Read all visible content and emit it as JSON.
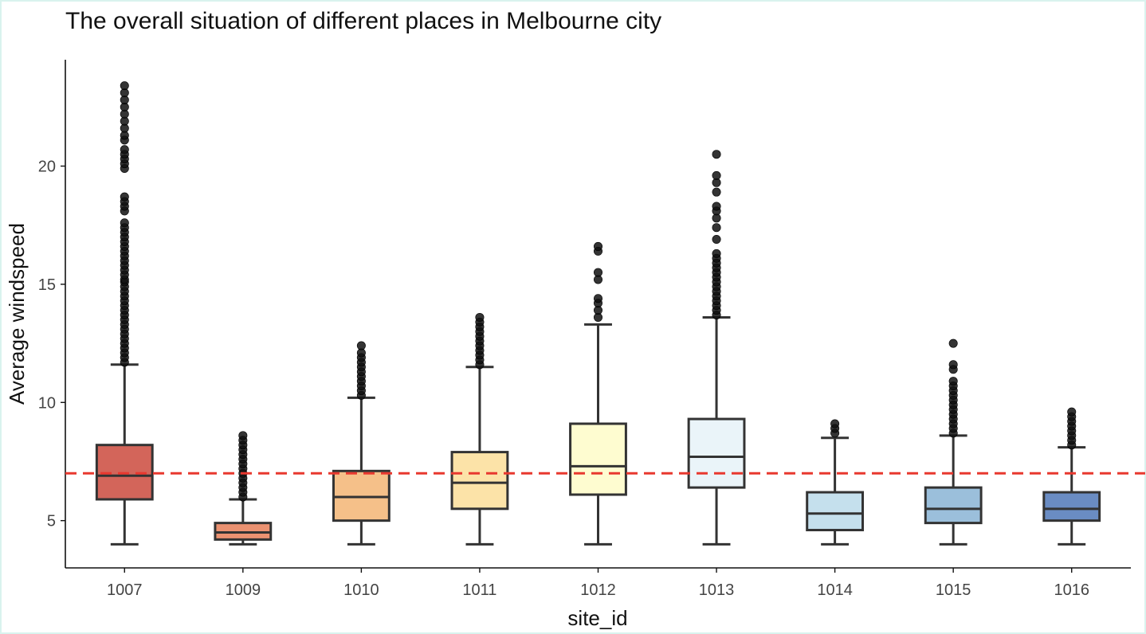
{
  "chart_data": {
    "type": "box",
    "title": "The overall situation of different places in Melbourne city",
    "xlabel": "site_id",
    "ylabel": "Average windspeed",
    "ylim": [
      3,
      24.5
    ],
    "yticks": [
      5,
      10,
      15,
      20
    ],
    "grid": false,
    "reference_line": {
      "y": 7.0,
      "style": "dashed",
      "color": "#e8382f"
    },
    "box_edge_color": "#333333",
    "outlier_color": "#111111",
    "series": [
      {
        "category": "1007",
        "color": "#d3655a",
        "min": 4.0,
        "q1": 5.9,
        "median": 6.9,
        "q3": 8.2,
        "max": 11.6,
        "outliers": [
          11.7,
          11.9,
          12.1,
          12.3,
          12.5,
          12.7,
          12.9,
          13.1,
          13.3,
          13.5,
          13.7,
          13.9,
          14.1,
          14.3,
          14.5,
          14.7,
          14.9,
          15.1,
          15.2,
          15.4,
          15.6,
          15.8,
          16.0,
          16.2,
          16.4,
          16.6,
          16.8,
          17.0,
          17.2,
          17.4,
          17.6,
          18.1,
          18.3,
          18.5,
          18.7,
          19.9,
          20.1,
          20.3,
          20.5,
          20.7,
          21.1,
          21.3,
          21.6,
          21.9,
          22.2,
          22.5,
          22.8,
          23.1,
          23.4
        ]
      },
      {
        "category": "1009",
        "color": "#eb9271",
        "min": 4.0,
        "q1": 4.2,
        "median": 4.5,
        "q3": 4.9,
        "max": 5.9,
        "outliers": [
          6.0,
          6.2,
          6.4,
          6.6,
          6.8,
          7.0,
          7.2,
          7.4,
          7.6,
          7.8,
          8.0,
          8.2,
          8.4,
          8.6
        ]
      },
      {
        "category": "1010",
        "color": "#f5c089",
        "min": 4.0,
        "q1": 5.0,
        "median": 6.0,
        "q3": 7.1,
        "max": 10.2,
        "outliers": [
          10.3,
          10.5,
          10.7,
          10.9,
          11.1,
          11.3,
          11.5,
          11.7,
          11.9,
          12.1,
          12.4
        ]
      },
      {
        "category": "1011",
        "color": "#fce3a8",
        "min": 4.0,
        "q1": 5.5,
        "median": 6.6,
        "q3": 7.9,
        "max": 11.5,
        "outliers": [
          11.6,
          11.8,
          12.0,
          12.2,
          12.4,
          12.6,
          12.8,
          13.0,
          13.2,
          13.4,
          13.6
        ]
      },
      {
        "category": "1012",
        "color": "#fefcd0",
        "min": 4.0,
        "q1": 6.1,
        "median": 7.3,
        "q3": 9.1,
        "max": 13.3,
        "outliers": [
          13.6,
          13.9,
          14.2,
          14.4,
          15.2,
          15.5,
          16.4,
          16.6
        ]
      },
      {
        "category": "1013",
        "color": "#eaf4f9",
        "min": 4.0,
        "q1": 6.4,
        "median": 7.7,
        "q3": 9.3,
        "max": 13.6,
        "outliers": [
          13.7,
          13.9,
          14.1,
          14.3,
          14.5,
          14.7,
          14.9,
          15.1,
          15.3,
          15.5,
          15.7,
          15.9,
          16.1,
          16.3,
          16.9,
          17.4,
          17.8,
          18.1,
          18.3,
          18.9,
          19.3,
          19.6,
          20.5
        ]
      },
      {
        "category": "1014",
        "color": "#c5e0ed",
        "min": 4.0,
        "q1": 4.6,
        "median": 5.3,
        "q3": 6.2,
        "max": 8.5,
        "outliers": [
          8.7,
          8.9,
          9.1
        ]
      },
      {
        "category": "1015",
        "color": "#9bbfdb",
        "min": 4.0,
        "q1": 4.9,
        "median": 5.5,
        "q3": 6.4,
        "max": 8.6,
        "outliers": [
          8.7,
          8.9,
          9.1,
          9.3,
          9.5,
          9.7,
          9.9,
          10.1,
          10.3,
          10.5,
          10.7,
          10.9,
          11.4,
          11.6,
          12.5
        ]
      },
      {
        "category": "1016",
        "color": "#6a8cc3",
        "min": 4.0,
        "q1": 5.0,
        "median": 5.5,
        "q3": 6.2,
        "max": 8.1,
        "outliers": [
          8.2,
          8.4,
          8.6,
          8.8,
          9.0,
          9.2,
          9.4,
          9.6
        ]
      }
    ]
  }
}
